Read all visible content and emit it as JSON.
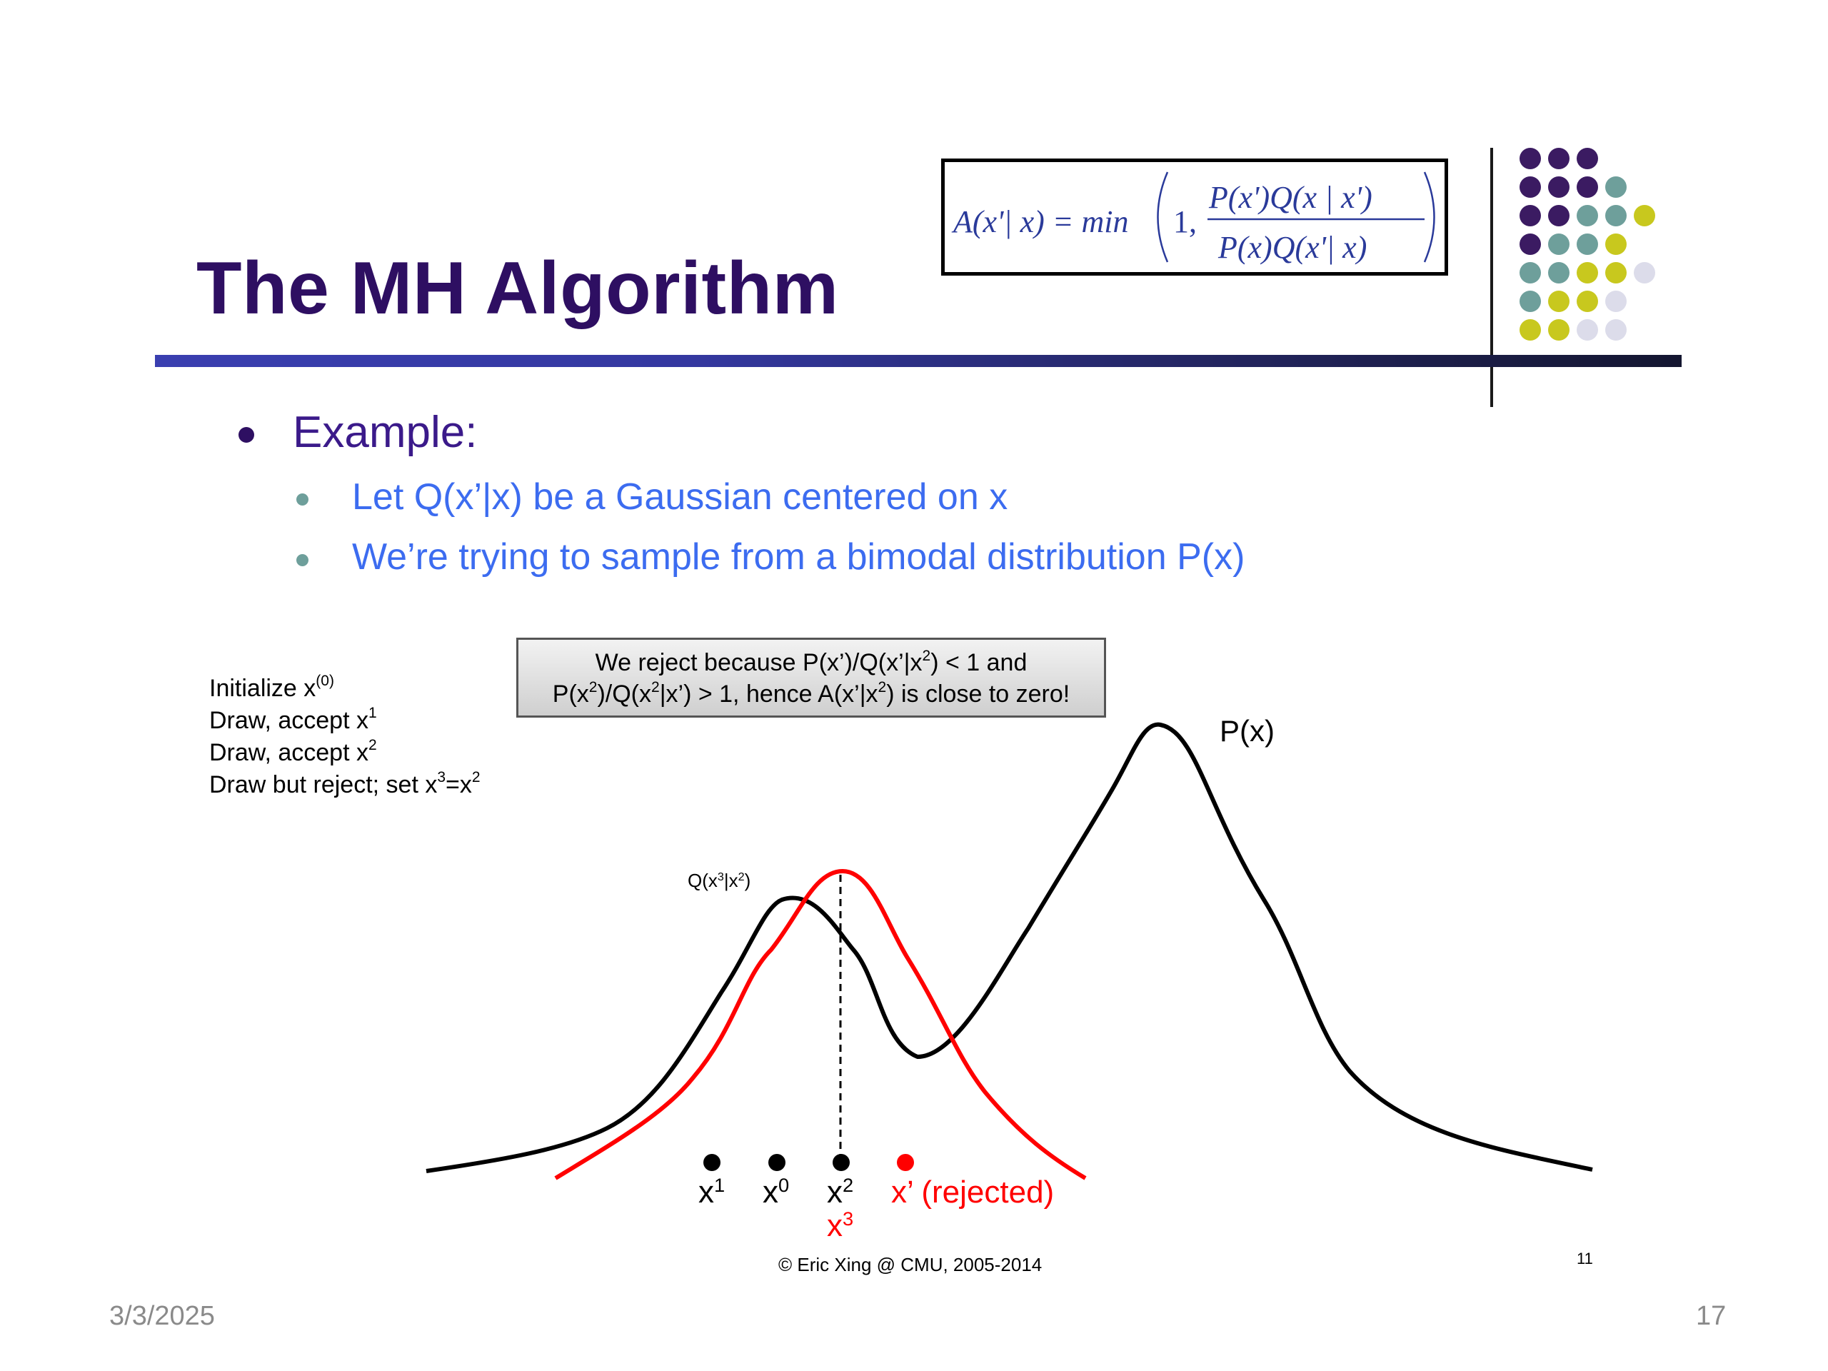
{
  "slide": {
    "title": "The MH Algorithm",
    "formula": {
      "lhs": "A(x'| x) = min",
      "one": "1,",
      "numerator": "P(x')Q(x | x')",
      "denominator": "P(x)Q(x'| x)"
    },
    "bullet_main": "Example:",
    "sub_bullets": [
      "Let Q(x’|x) be a Gaussian centered on x",
      "We’re trying to sample from a bimodal distribution P(x)"
    ],
    "steps": {
      "s1_pre": "Initialize x",
      "s1_sup": "(0)",
      "s2_pre": "Draw, accept x",
      "s2_sup": "1",
      "s3_pre": "Draw, accept x",
      "s3_sup": "2",
      "s4_pre": "Draw but reject; set x",
      "s4_sup1": "3",
      "s4_mid": "=x",
      "s4_sup2": "2"
    },
    "callout": {
      "l1_a": "We reject because P(x’)/Q(x’|x",
      "l1_sup": "2",
      "l1_b": ") < 1 and",
      "l2_a": "P(x",
      "l2_sup1": "2",
      "l2_b": ")/Q(x",
      "l2_sup2": "2",
      "l2_c": "|x’) > 1, hence A(x’|x",
      "l2_sup3": "2",
      "l2_d": ") is close to zero!"
    },
    "diagram": {
      "px_label": "P(x)",
      "q_label_a": "Q(x",
      "q_sup1": "3",
      "q_label_b": "|x",
      "q_sup2": "2",
      "q_label_c": ")",
      "x1": "x",
      "x1_sup": "1",
      "x0": "x",
      "x0_sup": "0",
      "x2": "x",
      "x2_sup": "2",
      "x3": "x",
      "x3_sup": "3",
      "xprime": "x’ (rejected)"
    },
    "credit": "© Eric Xing @ CMU, 2005-2014",
    "inner_page": "11",
    "date": "3/3/2025",
    "page_number": "17",
    "colors": {
      "title": "#2e0f62",
      "sub_bullet_text": "#3c6cf0",
      "proposal_curve": "#ff0000",
      "target_curve": "#000000",
      "dot_purple": "#3b1b62",
      "dot_teal": "#6e9f9b",
      "dot_yellow": "#c8c81e",
      "dot_lavender": "#dcdcea"
    }
  }
}
